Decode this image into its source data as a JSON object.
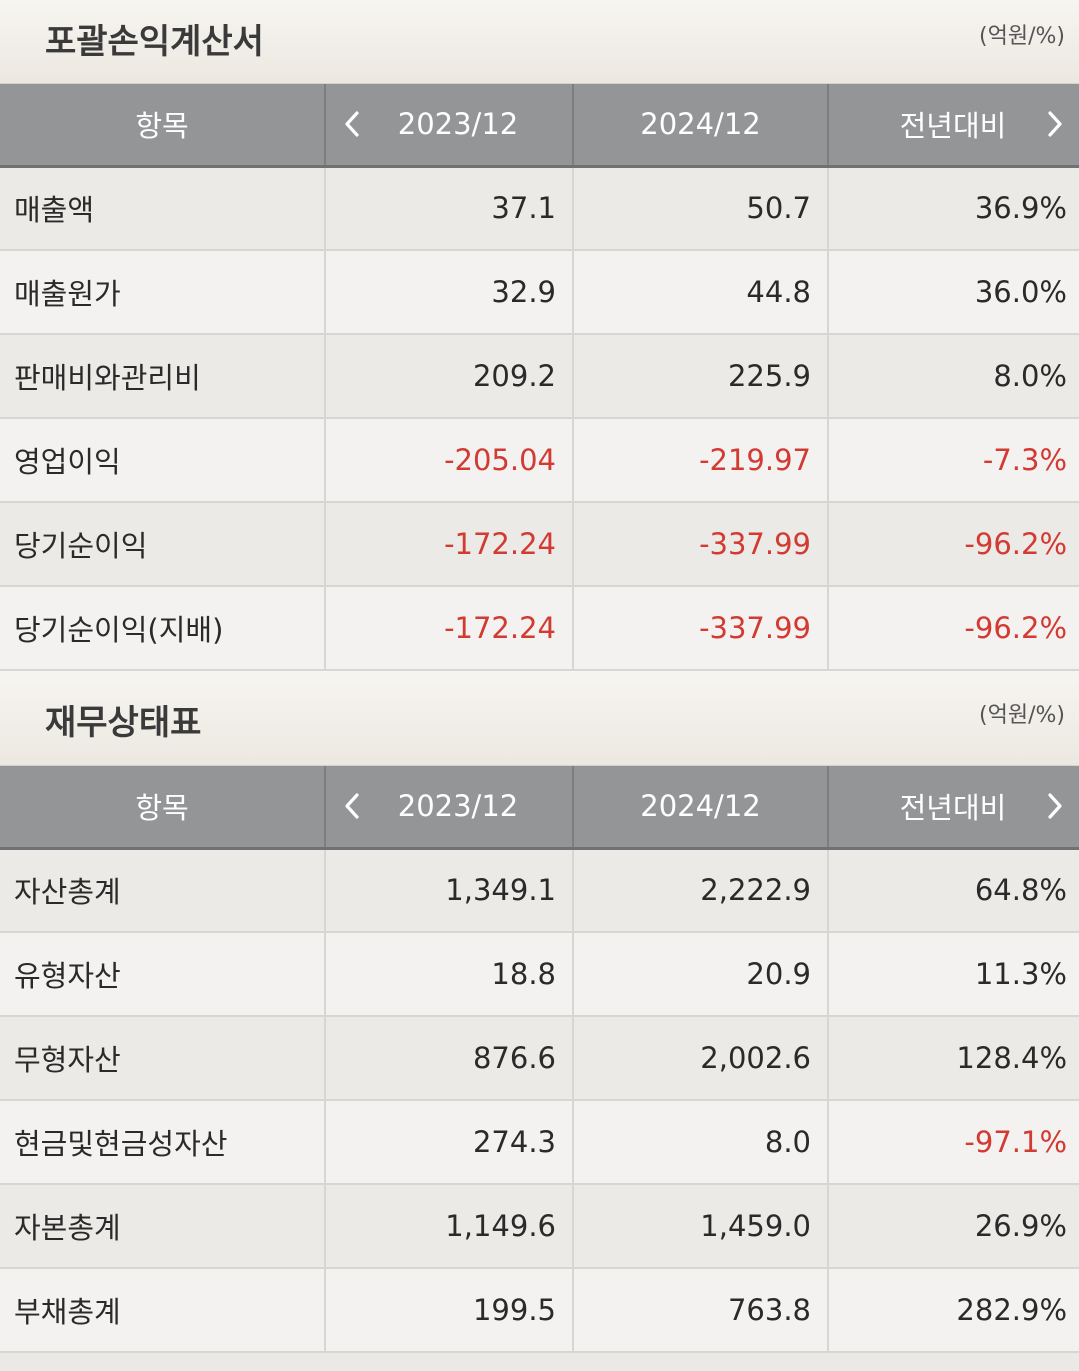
{
  "income_statement": {
    "title": "포괄손익계산서",
    "unit": "(억원/%)",
    "headers": {
      "item": "항목",
      "col1": "2023/12",
      "col2": "2024/12",
      "col3": "전년대비"
    },
    "rows": [
      {
        "label": "매출액",
        "v2023": "37.1",
        "v2024": "50.7",
        "yoy": "36.9%",
        "negative": false,
        "yoy_negative": false
      },
      {
        "label": "매출원가",
        "v2023": "32.9",
        "v2024": "44.8",
        "yoy": "36.0%",
        "negative": false,
        "yoy_negative": false
      },
      {
        "label": "판매비와관리비",
        "v2023": "209.2",
        "v2024": "225.9",
        "yoy": "8.0%",
        "negative": false,
        "yoy_negative": false
      },
      {
        "label": "영업이익",
        "v2023": "-205.04",
        "v2024": "-219.97",
        "yoy": "-7.3%",
        "negative": true,
        "yoy_negative": true
      },
      {
        "label": "당기순이익",
        "v2023": "-172.24",
        "v2024": "-337.99",
        "yoy": "-96.2%",
        "negative": true,
        "yoy_negative": true
      },
      {
        "label": "당기순이익(지배)",
        "v2023": "-172.24",
        "v2024": "-337.99",
        "yoy": "-96.2%",
        "negative": true,
        "yoy_negative": true
      }
    ]
  },
  "balance_sheet": {
    "title": "재무상태표",
    "unit": "(억원/%)",
    "headers": {
      "item": "항목",
      "col1": "2023/12",
      "col2": "2024/12",
      "col3": "전년대비"
    },
    "rows": [
      {
        "label": "자산총계",
        "v2023": "1,349.1",
        "v2024": "2,222.9",
        "yoy": "64.8%",
        "negative": false,
        "yoy_negative": false
      },
      {
        "label": "유형자산",
        "v2023": "18.8",
        "v2024": "20.9",
        "yoy": "11.3%",
        "negative": false,
        "yoy_negative": false
      },
      {
        "label": "무형자산",
        "v2023": "876.6",
        "v2024": "2,002.6",
        "yoy": "128.4%",
        "negative": false,
        "yoy_negative": false
      },
      {
        "label": "현금및현금성자산",
        "v2023": "274.3",
        "v2024": "8.0",
        "yoy": "-97.1%",
        "negative": false,
        "yoy_negative": true
      },
      {
        "label": "자본총계",
        "v2023": "1,149.6",
        "v2024": "1,459.0",
        "yoy": "26.9%",
        "negative": false,
        "yoy_negative": false
      },
      {
        "label": "부채총계",
        "v2023": "199.5",
        "v2024": "763.8",
        "yoy": "282.9%",
        "negative": false,
        "yoy_negative": false
      }
    ]
  },
  "icons": {
    "prev": "chevron-left-icon",
    "next": "chevron-right-icon"
  },
  "colors": {
    "negative": "#d23a32",
    "header_bg": "#939597"
  }
}
